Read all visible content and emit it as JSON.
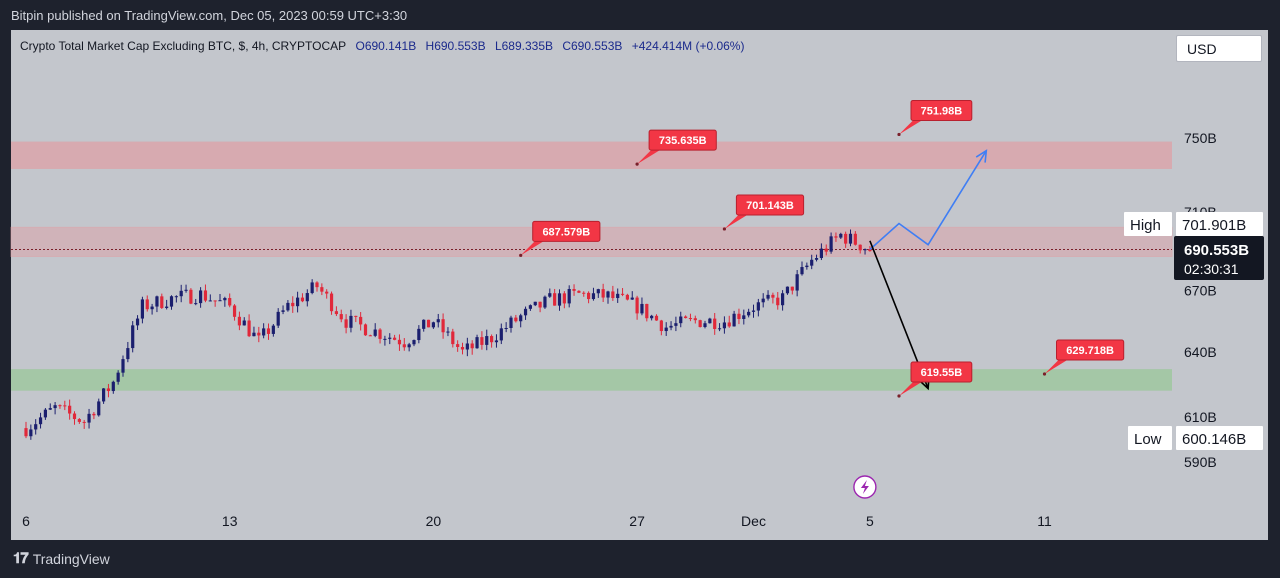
{
  "header": {
    "published_text": "Bitpin published on TradingView.com, Dec 05, 2023 00:59 UTC+3:30"
  },
  "legend": {
    "symbol": "Crypto Total Market Cap Excluding BTC, $, 4h, CRYPTOCAP",
    "open": "O690.141B",
    "high": "H690.553B",
    "low": "L689.335B",
    "close": "C690.553B",
    "change": "+424.414M (+0.06%)"
  },
  "currency_button": "USD",
  "footer": {
    "brand": "TradingView",
    "logo_icon": "tradingview-logo-icon"
  },
  "colors": {
    "up": "#1b1f6e",
    "down": "#e0283a",
    "resistance_zone": "#dba5aa",
    "support_zone": "#9fc79f",
    "callout": "#f23645",
    "bull_path": "#3f7ef4",
    "bear_path": "#000000"
  },
  "chart_data": {
    "type": "candlestick",
    "series_label": "",
    "y_unit": "B",
    "price_ticks": [
      {
        "label": "750B",
        "value": 750
      },
      {
        "label": "710B",
        "value": 710
      },
      {
        "label": "670B",
        "value": 670
      },
      {
        "label": "640B",
        "value": 640
      },
      {
        "label": "610B",
        "value": 610
      },
      {
        "label": "590B",
        "value": 590
      }
    ],
    "y_axis_scale": "log",
    "date_ticks": [
      {
        "label": "6",
        "date": "2023-11-06"
      },
      {
        "label": "13",
        "date": "2023-11-13"
      },
      {
        "label": "20",
        "date": "2023-11-20"
      },
      {
        "label": "27",
        "date": "2023-11-27"
      },
      {
        "label": "Dec",
        "date": "2023-12-01"
      },
      {
        "label": "5",
        "date": "2023-12-05"
      },
      {
        "label": "11",
        "date": "2023-12-11"
      }
    ],
    "x_range": [
      "2023-11-06",
      "2023-12-15"
    ],
    "y_range": [
      580,
      790
    ],
    "close_path": [
      [
        "2023-11-06",
        605
      ],
      [
        "2023-11-07",
        614
      ],
      [
        "2023-11-08",
        608
      ],
      [
        "2023-11-09",
        626
      ],
      [
        "2023-11-10",
        662
      ],
      [
        "2023-11-11",
        666
      ],
      [
        "2023-11-12",
        668
      ],
      [
        "2023-11-13",
        662
      ],
      [
        "2023-11-14",
        645
      ],
      [
        "2023-11-15",
        662
      ],
      [
        "2023-11-16",
        672
      ],
      [
        "2023-11-17",
        655
      ],
      [
        "2023-11-18",
        650
      ],
      [
        "2023-11-19",
        645
      ],
      [
        "2023-11-20",
        655
      ],
      [
        "2023-11-21",
        640
      ],
      [
        "2023-11-22",
        647
      ],
      [
        "2023-11-23",
        657
      ],
      [
        "2023-11-24",
        665
      ],
      [
        "2023-11-25",
        668
      ],
      [
        "2023-11-26",
        667
      ],
      [
        "2023-11-27",
        662
      ],
      [
        "2023-11-28",
        652
      ],
      [
        "2023-11-29",
        655
      ],
      [
        "2023-11-30",
        655
      ],
      [
        "2023-12-01",
        662
      ],
      [
        "2023-12-02",
        666
      ],
      [
        "2023-12-03",
        685
      ],
      [
        "2023-12-04",
        698
      ],
      [
        "2023-12-05",
        690.55
      ]
    ],
    "stats_labels": {
      "high_label": "High",
      "high_value": "701.901B",
      "low_label": "Low",
      "low_value": "600.146B",
      "last_price": "690.553B",
      "countdown": "02:30:31"
    },
    "zones": [
      {
        "name": "resistance",
        "from": 733,
        "to": 748
      },
      {
        "name": "current",
        "from": 687,
        "to": 702
      },
      {
        "name": "support",
        "from": 622,
        "to": 632
      }
    ],
    "callouts": [
      {
        "label": "735.635B",
        "date": "2023-11-27",
        "value": 735.635
      },
      {
        "label": "751.98B",
        "date": "2023-12-06",
        "value": 751.98
      },
      {
        "label": "701.143B",
        "date": "2023-11-30",
        "value": 701.143
      },
      {
        "label": "687.579B",
        "date": "2023-11-23",
        "value": 687.579
      },
      {
        "label": "619.55B",
        "date": "2023-12-06",
        "value": 619.55
      },
      {
        "label": "629.718B",
        "date": "2023-12-11",
        "value": 629.718
      }
    ],
    "projections": [
      {
        "name": "bullish",
        "points": [
          [
            "2023-12-05",
            690.55
          ],
          [
            "2023-12-06",
            704
          ],
          [
            "2023-12-07",
            693
          ],
          [
            "2023-12-09",
            743
          ]
        ]
      },
      {
        "name": "bearish",
        "points": [
          [
            "2023-12-05",
            695
          ],
          [
            "2023-12-07",
            623
          ]
        ]
      }
    ],
    "event_icon": "lightning-icon"
  }
}
